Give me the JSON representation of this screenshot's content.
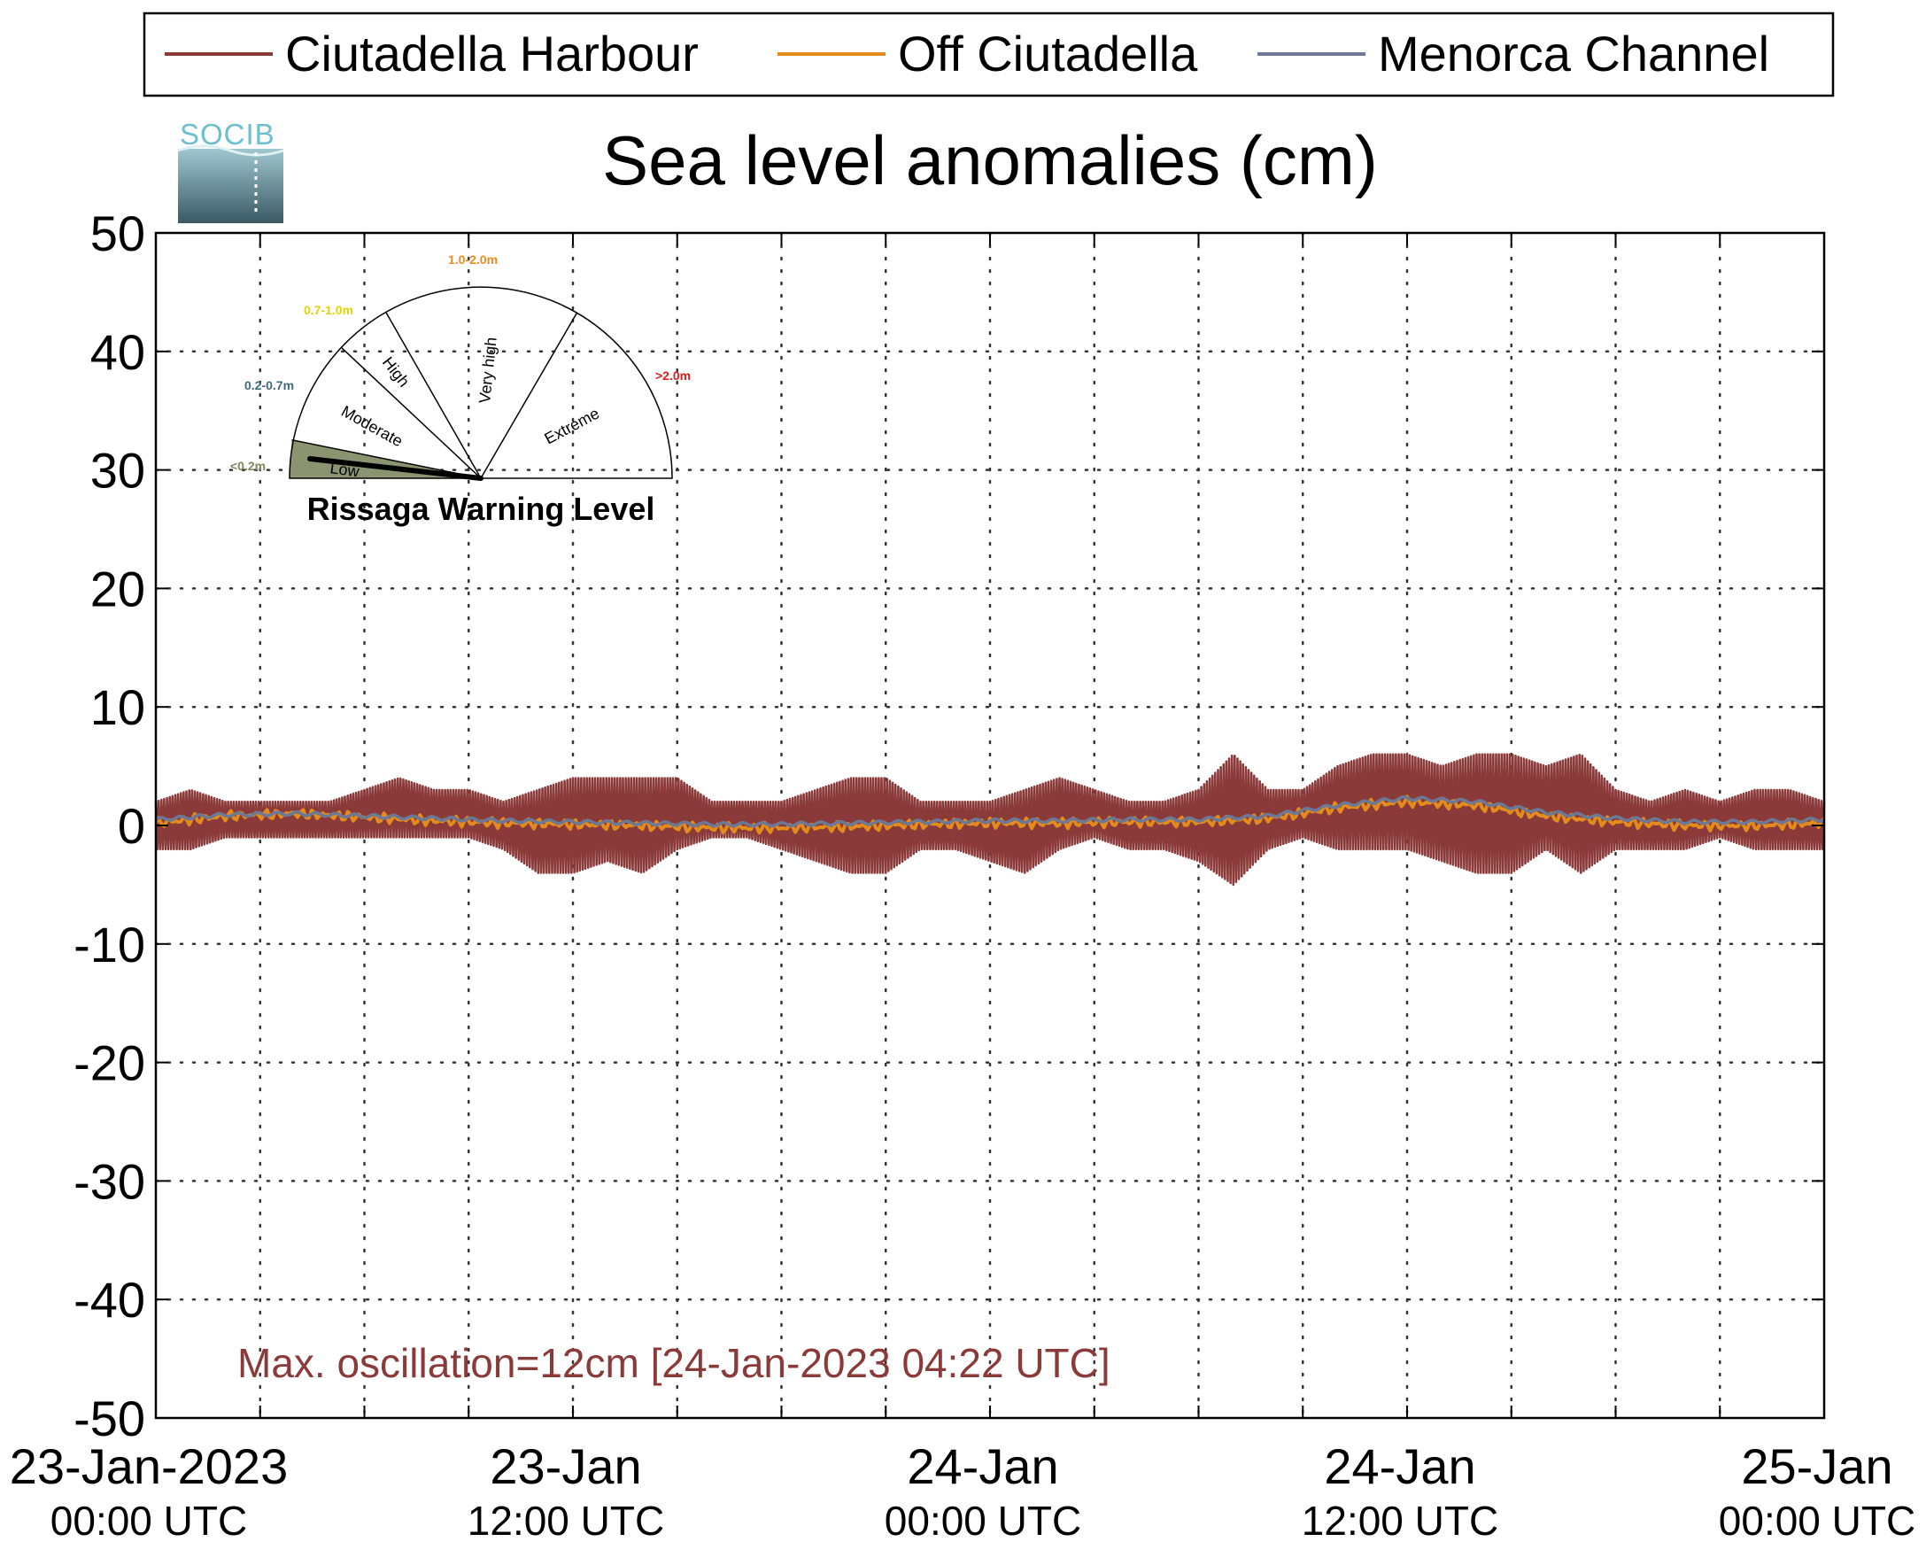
{
  "chart_data": {
    "type": "line",
    "title": "Sea level anomalies (cm)",
    "ylim": [
      -50,
      50
    ],
    "yticks": [
      50,
      40,
      30,
      20,
      10,
      0,
      -10,
      -20,
      -30,
      -40,
      -50
    ],
    "xlim_hours": [
      0,
      48
    ],
    "x_tick_labels": [
      {
        "hour": 0,
        "date": "23-Jan-2023",
        "time": "00:00 UTC"
      },
      {
        "hour": 12,
        "date": "23-Jan",
        "time": "12:00 UTC"
      },
      {
        "hour": 24,
        "date": "24-Jan",
        "time": "00:00 UTC"
      },
      {
        "hour": 36,
        "date": "24-Jan",
        "time": "12:00 UTC"
      },
      {
        "hour": 48,
        "date": "25-Jan",
        "time": "00:00 UTC"
      }
    ],
    "grid": true,
    "legend_position": "top",
    "legend": [
      "Ciutadella Harbour",
      "Off Ciutadella",
      "Menorca Channel"
    ],
    "series": [
      {
        "name": "Ciutadella Harbour",
        "color": "#8b3a3a",
        "kind": "oscillation envelope (min/max)",
        "hours": [
          0,
          1,
          2,
          3,
          4,
          5,
          6,
          7,
          8,
          9,
          10,
          11,
          12,
          13,
          14,
          15,
          16,
          17,
          18,
          19,
          20,
          21,
          22,
          23,
          24,
          25,
          26,
          27,
          28,
          29,
          30,
          31,
          32,
          33,
          34,
          35,
          36,
          37,
          38,
          39,
          40,
          41,
          42,
          43,
          44,
          45,
          46,
          47,
          48
        ],
        "upper": [
          2,
          3,
          2,
          2,
          2,
          2,
          3,
          4,
          3,
          3,
          2,
          3,
          4,
          4,
          4,
          4,
          2,
          2,
          2,
          3,
          4,
          4,
          2,
          2,
          2,
          3,
          4,
          3,
          2,
          2,
          3,
          6,
          3,
          3,
          5,
          6,
          6,
          5,
          6,
          6,
          5,
          6,
          3,
          2,
          3,
          2,
          3,
          3,
          2
        ],
        "lower": [
          -2,
          -2,
          -1,
          -1,
          -1,
          -1,
          -1,
          -1,
          -1,
          -1,
          -2,
          -4,
          -4,
          -3,
          -4,
          -2,
          -1,
          -1,
          -2,
          -3,
          -4,
          -4,
          -2,
          -2,
          -3,
          -4,
          -2,
          -1,
          -2,
          -2,
          -3,
          -5,
          -2,
          -1,
          -2,
          -2,
          -2,
          -3,
          -4,
          -4,
          -2,
          -4,
          -2,
          -2,
          -2,
          -1,
          -2,
          -2,
          -2
        ]
      },
      {
        "name": "Off Ciutadella",
        "color": "#e38b1c",
        "hours": [
          0,
          2,
          4,
          6,
          8,
          10,
          12,
          14,
          16,
          18,
          20,
          22,
          24,
          26,
          28,
          30,
          32,
          34,
          36,
          38,
          40,
          42,
          44,
          46,
          48
        ],
        "values": [
          0.2,
          0.8,
          1.0,
          0.7,
          0.4,
          0.2,
          0.1,
          0.0,
          -0.2,
          -0.2,
          -0.1,
          0.1,
          0.2,
          0.2,
          0.3,
          0.3,
          0.6,
          1.5,
          2.0,
          1.7,
          0.8,
          0.3,
          0.0,
          0.0,
          0.2
        ]
      },
      {
        "name": "Menorca Channel",
        "color": "#6b7896",
        "hours": [
          0,
          2,
          4,
          6,
          8,
          10,
          12,
          14,
          16,
          18,
          20,
          22,
          24,
          26,
          28,
          30,
          32,
          34,
          36,
          38,
          40,
          42,
          44,
          46,
          48
        ],
        "values": [
          0.5,
          0.9,
          1.0,
          0.8,
          0.6,
          0.4,
          0.3,
          0.2,
          0.1,
          0.1,
          0.2,
          0.3,
          0.4,
          0.4,
          0.5,
          0.5,
          0.8,
          1.7,
          2.3,
          2.0,
          1.1,
          0.6,
          0.3,
          0.3,
          0.5
        ]
      }
    ],
    "annotation": "Max. oscillation=12cm [24-Jan-2023 04:22 UTC]"
  },
  "logo_text": "SOCIB",
  "gauge": {
    "title": "Rissaga Warning Level",
    "current_level": "Low",
    "levels": [
      {
        "name": "Low",
        "range": "<0.2m",
        "color": "#7a8a5a"
      },
      {
        "name": "Moderate",
        "range": "0.2-0.7m",
        "color": "#3f6b7a"
      },
      {
        "name": "High",
        "range": "0.7-1.0m",
        "color": "#f2e20a"
      },
      {
        "name": "Very high",
        "range": "1.0-2.0m",
        "color": "#f08a1c"
      },
      {
        "name": "Extreme",
        "range": ">2.0m",
        "color": "#e8191a"
      }
    ]
  },
  "colors": {
    "axis": "#000000",
    "grid": "#333333",
    "annotation": "#8b3a3a",
    "gauge_fill": "#8a9470"
  }
}
